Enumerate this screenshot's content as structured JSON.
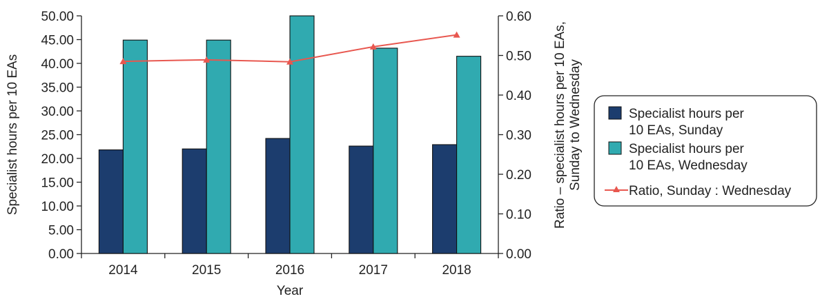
{
  "chart_data": {
    "type": "bar",
    "categories": [
      "2014",
      "2015",
      "2016",
      "2017",
      "2018"
    ],
    "xlabel": "Year",
    "ylabel": "Specialist hours per 10 EAs",
    "y2label_lines": [
      "Ratio – specialist hours per 10 EAs,",
      "Sunday to Wednesday"
    ],
    "ylim": [
      0,
      50
    ],
    "yticks": [
      "0.00",
      "5.00",
      "10.00",
      "15.00",
      "20.00",
      "25.00",
      "30.00",
      "35.00",
      "40.00",
      "45.00",
      "50.00"
    ],
    "y2lim": [
      0,
      0.6
    ],
    "y2ticks": [
      "0.00",
      "0.10",
      "0.20",
      "0.30",
      "0.40",
      "0.50",
      "0.60"
    ],
    "series": [
      {
        "name": "Specialist hours per 10 EAs, Sunday",
        "legend_lines": [
          "Specialist hours per",
          "10 EAs, Sunday"
        ],
        "type": "bar",
        "axis": "left",
        "color": "#1c3d6e",
        "values": [
          21.8,
          22.0,
          24.2,
          22.6,
          22.9
        ]
      },
      {
        "name": "Specialist hours per 10 EAs, Wednesday",
        "legend_lines": [
          "Specialist hours per",
          "10 EAs, Wednesday"
        ],
        "type": "bar",
        "axis": "left",
        "color": "#30aab0",
        "values": [
          44.9,
          44.9,
          50.0,
          43.2,
          41.5
        ]
      },
      {
        "name": "Ratio, Sunday : Wednesday",
        "legend_lines": [
          "Ratio, Sunday : Wednesday"
        ],
        "type": "line",
        "axis": "right",
        "color": "#e8574f",
        "values": [
          0.485,
          0.489,
          0.484,
          0.522,
          0.552
        ]
      }
    ],
    "legend_position": "right",
    "grid": false
  }
}
